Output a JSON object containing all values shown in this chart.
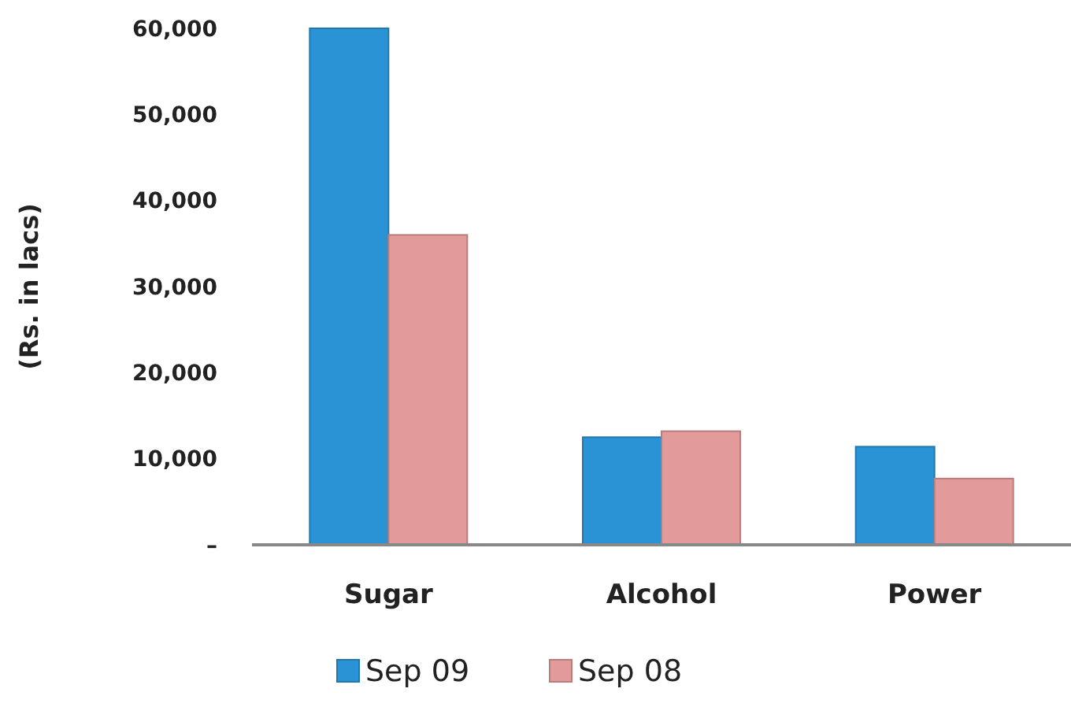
{
  "chart_data": {
    "type": "bar",
    "ylabel": "(Rs. in lacs)",
    "categories": [
      "Sugar",
      "Alcohol",
      "Power"
    ],
    "series": [
      {
        "name": "Sep 09",
        "color": "#2a93d5",
        "values": [
          60000,
          12500,
          11400
        ]
      },
      {
        "name": "Sep 08",
        "color": "#e39a9a",
        "values": [
          36000,
          13200,
          7700
        ]
      }
    ],
    "ylim": [
      0,
      60000
    ],
    "yticks": [
      {
        "value": 0,
        "label": "–"
      },
      {
        "value": 10000,
        "label": "10,000"
      },
      {
        "value": 20000,
        "label": "20,000"
      },
      {
        "value": 30000,
        "label": "30,000"
      },
      {
        "value": 40000,
        "label": "40,000"
      },
      {
        "value": 50000,
        "label": "50,000"
      },
      {
        "value": 60000,
        "label": "60,000"
      }
    ],
    "legend": "bottom",
    "grid": false
  }
}
